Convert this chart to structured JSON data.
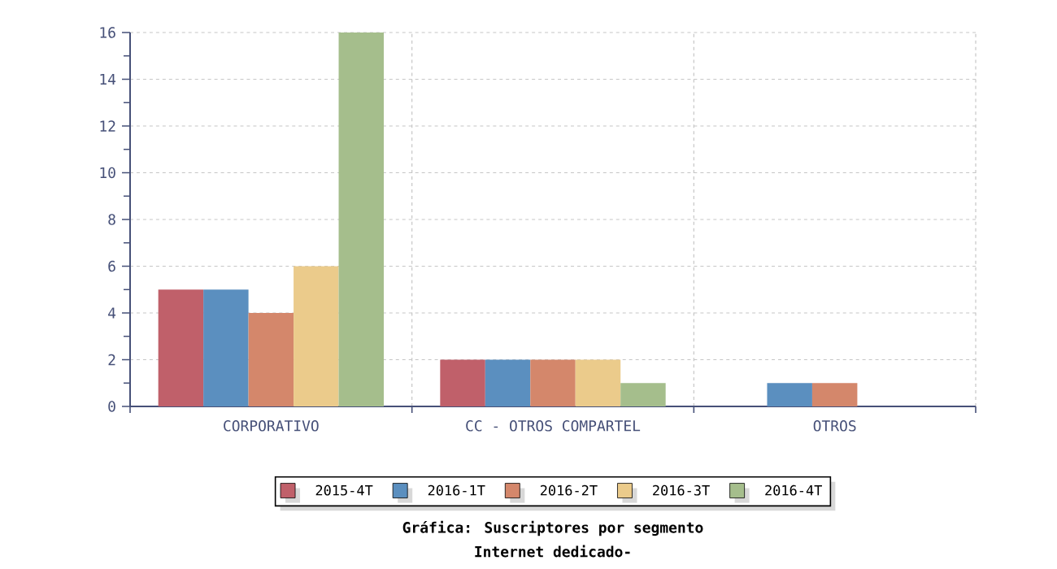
{
  "chart_data": {
    "type": "bar",
    "title": "Gráfica: Suscriptores por segmento",
    "subtitle": "Internet dedicado-",
    "categories": [
      "CORPORATIVO",
      "CC - OTROS COMPARTEL",
      "OTROS"
    ],
    "series": [
      {
        "name": "2015-4T",
        "color": "#c0606a",
        "values": [
          5,
          2,
          null
        ]
      },
      {
        "name": "2016-1T",
        "color": "#5b8fbf",
        "values": [
          5,
          2,
          1
        ]
      },
      {
        "name": "2016-2T",
        "color": "#d4876b",
        "values": [
          4,
          2,
          1
        ]
      },
      {
        "name": "2016-3T",
        "color": "#ebcb8b",
        "values": [
          6,
          2,
          null
        ]
      },
      {
        "name": "2016-4T",
        "color": "#a5be8c",
        "values": [
          16,
          1,
          null
        ]
      }
    ],
    "ylim": [
      0,
      16
    ],
    "yticks": [
      0,
      2,
      4,
      6,
      8,
      10,
      12,
      14,
      16
    ],
    "grid": true,
    "legend": "bottom"
  }
}
